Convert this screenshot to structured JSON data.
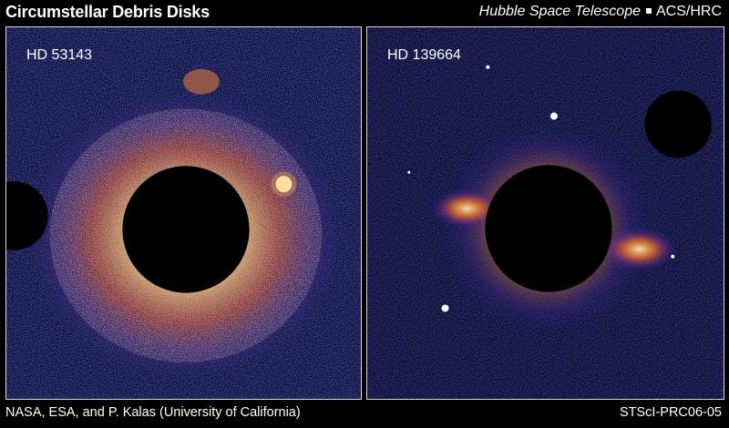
{
  "header": {
    "title": "Circumstellar Debris Disks",
    "telescope": "Hubble Space Telescope",
    "instrument": "ACS/HRC"
  },
  "panels": [
    {
      "label": "HD 53143"
    },
    {
      "label": "HD 139664"
    }
  ],
  "footer": {
    "credit": "NASA, ESA, and P. Kalas (University of California)",
    "release_id": "STScI-PRC06-05"
  },
  "colors": {
    "background": "#000000",
    "noise_field": "#1a1f8a",
    "disk_glow": "#ffb347",
    "occulter": "#000000"
  }
}
